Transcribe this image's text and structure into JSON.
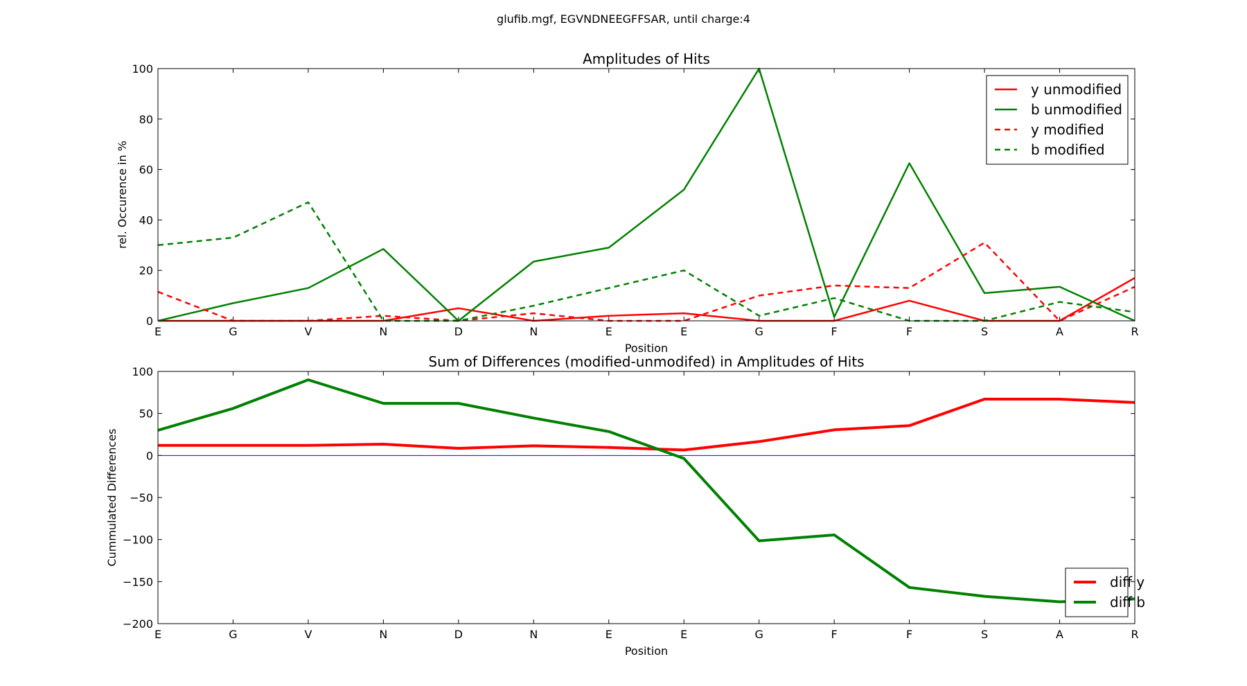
{
  "figure": {
    "suptitle": "glufib.mgf, EGVNDNEEGFFSAR, until charge:4"
  },
  "chart_data": [
    {
      "type": "line",
      "title": "Amplitudes of Hits",
      "xlabel": "Position",
      "ylabel": "rel. Occurence in %",
      "categories": [
        "E",
        "G",
        "V",
        "N",
        "D",
        "N",
        "E",
        "E",
        "G",
        "F",
        "F",
        "S",
        "A",
        "R"
      ],
      "ylim": [
        0,
        100
      ],
      "yticks": [
        0,
        20,
        40,
        60,
        80,
        100
      ],
      "grid": false,
      "legend_position": "top-right",
      "series": [
        {
          "name": "y unmodified",
          "color": "#ff0000",
          "style": "solid",
          "values": [
            0,
            0,
            0,
            0,
            5,
            0,
            2,
            3,
            0,
            0,
            8,
            0,
            0,
            17
          ]
        },
        {
          "name": "b unmodified",
          "color": "#008000",
          "style": "solid",
          "values": [
            0,
            7,
            13,
            28.5,
            0,
            23.5,
            29,
            52,
            100,
            1.5,
            62.5,
            11,
            13.5,
            0
          ]
        },
        {
          "name": "y modified",
          "color": "#ff0000",
          "style": "dashed",
          "values": [
            11.5,
            0,
            0,
            2,
            0,
            3,
            0,
            0,
            10,
            14,
            13,
            31,
            0,
            13.5
          ]
        },
        {
          "name": "b modified",
          "color": "#008000",
          "style": "dashed",
          "values": [
            30,
            33,
            47,
            0,
            0,
            6,
            13,
            20,
            2,
            9,
            0,
            0,
            7.5,
            3.5
          ]
        }
      ]
    },
    {
      "type": "line",
      "title": "Sum of Differences (modified-unmodifed) in Amplitudes of Hits",
      "xlabel": "Position",
      "ylabel": "Cummulated Differences",
      "categories": [
        "E",
        "G",
        "V",
        "N",
        "D",
        "N",
        "E",
        "E",
        "G",
        "F",
        "F",
        "S",
        "A",
        "R"
      ],
      "ylim": [
        -200,
        100
      ],
      "yticks": [
        -200,
        -150,
        -100,
        -50,
        0,
        50,
        100
      ],
      "zero_line_color": "#0000ff",
      "grid": false,
      "legend_position": "lower-right",
      "series": [
        {
          "name": "diff y",
          "color": "#ff0000",
          "style": "solid",
          "values": [
            12,
            12,
            12,
            13.5,
            8.5,
            11.5,
            9.5,
            6.5,
            16.5,
            30.5,
            35.5,
            67,
            67,
            63
          ]
        },
        {
          "name": "diff b",
          "color": "#008000",
          "style": "solid",
          "values": [
            30,
            56,
            90,
            62,
            62,
            44.5,
            28.5,
            -3.5,
            -101.5,
            -94.5,
            -157,
            -167.5,
            -174,
            -170.5
          ]
        }
      ]
    }
  ]
}
